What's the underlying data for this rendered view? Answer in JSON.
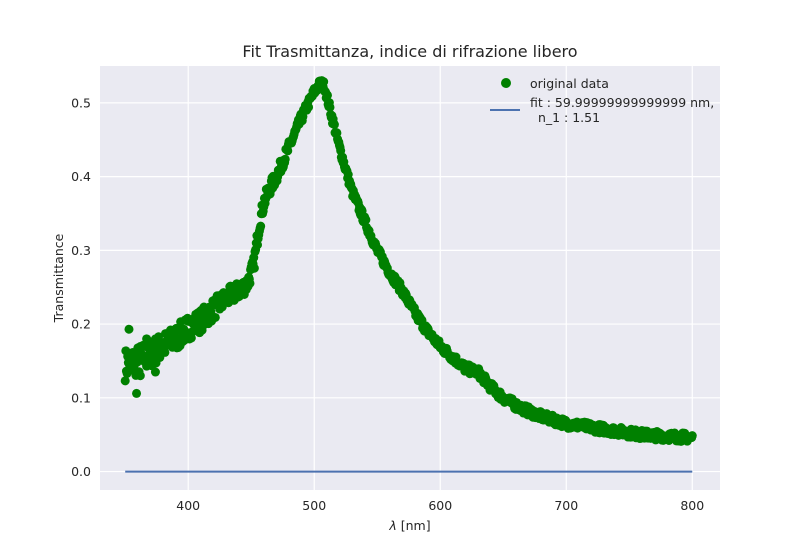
{
  "chart_data": {
    "type": "scatter",
    "title": "Fit Trasmittanza, indice di rifrazione libero",
    "xlabel_var": "λ",
    "xlabel_unit": " [nm]",
    "ylabel": "Transmittance",
    "xlim": [
      330,
      822
    ],
    "ylim": [
      -0.025,
      0.55
    ],
    "xticks": [
      400,
      500,
      600,
      700,
      800
    ],
    "yticks": [
      0.0,
      0.1,
      0.2,
      0.3,
      0.4,
      0.5
    ],
    "xtick_labels": [
      "400",
      "500",
      "600",
      "700",
      "800"
    ],
    "ytick_labels": [
      "0.0",
      "0.1",
      "0.2",
      "0.3",
      "0.4",
      "0.5"
    ],
    "grid": true,
    "legend_position": "top-right",
    "series": [
      {
        "name": "original data",
        "kind": "scatter",
        "color": "#008000",
        "x_range": [
          350,
          800
        ],
        "outliers": [
          [
            353,
            0.193
          ],
          [
            359,
            0.106
          ],
          [
            355,
            0.14
          ],
          [
            362,
            0.13
          ],
          [
            374,
            0.135
          ],
          [
            367,
            0.18
          ]
        ],
        "profile_x": [
          350,
          360,
          370,
          380,
          390,
          400,
          410,
          420,
          430,
          440,
          447,
          452,
          456,
          460,
          465,
          470,
          480,
          490,
          500,
          505,
          508,
          512,
          520,
          530,
          540,
          550,
          560,
          570,
          580,
          590,
          600,
          610,
          620,
          630,
          640,
          650,
          660,
          670,
          680,
          690,
          700,
          720,
          740,
          760,
          780,
          800
        ],
        "profile_y": [
          0.145,
          0.15,
          0.16,
          0.17,
          0.18,
          0.195,
          0.205,
          0.22,
          0.235,
          0.245,
          0.255,
          0.28,
          0.33,
          0.365,
          0.385,
          0.4,
          0.44,
          0.48,
          0.515,
          0.527,
          0.523,
          0.495,
          0.44,
          0.38,
          0.34,
          0.3,
          0.27,
          0.245,
          0.215,
          0.19,
          0.17,
          0.155,
          0.14,
          0.135,
          0.115,
          0.1,
          0.09,
          0.082,
          0.075,
          0.07,
          0.065,
          0.06,
          0.055,
          0.05,
          0.048,
          0.046
        ],
        "noise_amplitude_start": 0.022,
        "noise_amplitude_end": 0.006
      },
      {
        "name": "fit : 59.99999999999999 nm,",
        "name_line2": "  n_1 : 1.51",
        "kind": "line",
        "color": "#4C72B0",
        "x": [
          350,
          800
        ],
        "y": [
          0.0,
          0.0
        ]
      }
    ]
  }
}
